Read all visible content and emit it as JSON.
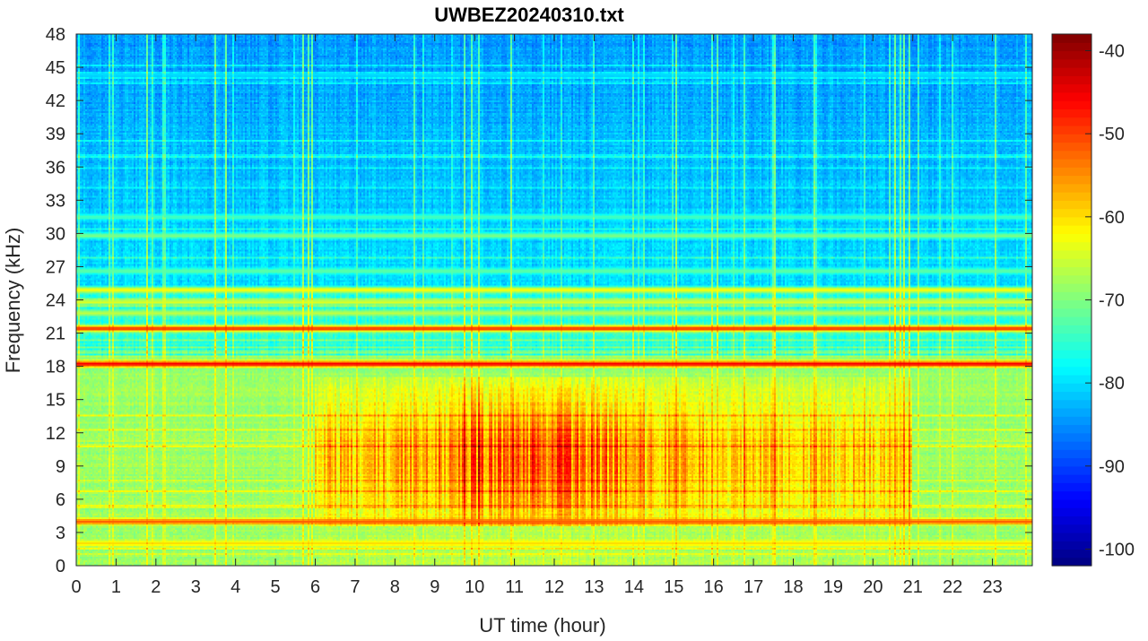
{
  "chart_data": {
    "type": "heatmap",
    "title": "UWBEZ20240310.txt",
    "xlabel": "UT time (hour)",
    "ylabel": "Frequency (kHz)",
    "xlim": [
      0,
      24
    ],
    "ylim": [
      0,
      48
    ],
    "x_ticks": [
      "0",
      "1",
      "2",
      "3",
      "4",
      "5",
      "6",
      "7",
      "8",
      "9",
      "10",
      "11",
      "12",
      "13",
      "14",
      "15",
      "16",
      "17",
      "18",
      "19",
      "20",
      "21",
      "22",
      "23"
    ],
    "y_ticks": [
      "0",
      "3",
      "6",
      "9",
      "12",
      "15",
      "18",
      "21",
      "24",
      "27",
      "30",
      "33",
      "36",
      "39",
      "42",
      "45",
      "48"
    ],
    "colorbar": {
      "colormap": "jet",
      "range": [
        -102,
        -38
      ],
      "ticks": [
        "-100",
        "-90",
        "-80",
        "-70",
        "-60",
        "-50",
        "-40"
      ]
    },
    "features": {
      "background_level_high_freq": -87,
      "background_level_low_freq": -70,
      "broadband_activity_hours": [
        6,
        21
      ],
      "strong_broadband_hours": [
        9,
        14
      ],
      "narrowband_lines_khz": [
        {
          "freq": 18.2,
          "level": -45
        },
        {
          "freq": 21.4,
          "level": -48
        },
        {
          "freq": 4.0,
          "level": -52
        },
        {
          "freq": 24.9,
          "level": -62
        },
        {
          "freq": 23.8,
          "level": -64
        },
        {
          "freq": 22.8,
          "level": -66
        },
        {
          "freq": 2.0,
          "level": -60
        },
        {
          "freq": 31.5,
          "level": -74
        },
        {
          "freq": 29.8,
          "level": -70
        },
        {
          "freq": 44.3,
          "level": -80
        },
        {
          "freq": 26.6,
          "level": -72
        }
      ]
    }
  }
}
